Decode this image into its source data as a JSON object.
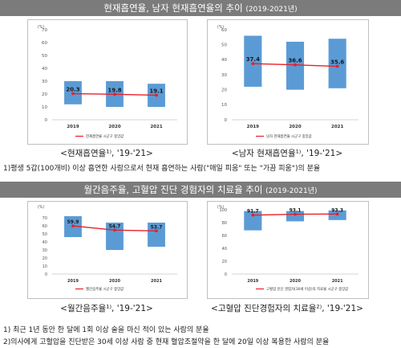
{
  "section1": {
    "title": "현재흡연율, 남자 현재흡연율의 추이",
    "years": "(2019-2021년)"
  },
  "section2": {
    "title": "월간음주율, 고혈압 진단 경험자의 치료율 추이",
    "years": "(2019-2021년)"
  },
  "captions": [
    "<현재흡연율¹⁾, '19-'21>",
    "<남자 현재흡연율¹⁾, '19-'21>",
    "<월간음주율¹⁾, '19-'21>",
    "<고혈압 진단경험자의 치료율²⁾, '19-'21>"
  ],
  "notes": {
    "smoking": "1)평생 5갑(100개비) 이상 흡연한 사람으로서 현재 흡연하는 사람(\"매일 피움\" 또는 \"가끔 피움\")의 분율",
    "drinking1": "1) 최근 1년 동안 한 달에 1회 이상 술을 마신 적이 있는 사람의 분율",
    "drinking2": "2)의사에게 고혈압을 진단받은 30세 이상 사람 중 현재 혈압조절약을 한 달에 20일 이상 복용한 사람의 분율"
  },
  "colors": {
    "bar": "#5b9bd5",
    "line": "#e8202a",
    "banner": "#7b7b7b"
  },
  "chart_data": [
    {
      "type": "line",
      "unit": "(%)",
      "x": [
        "2019",
        "2020",
        "2021"
      ],
      "series": [
        {
          "name": "현재흡연율 시군구 중앙값",
          "values": [
            20.3,
            19.8,
            19.1
          ]
        }
      ],
      "ranges": [
        [
          12,
          30
        ],
        [
          10,
          30
        ],
        [
          10,
          28
        ]
      ],
      "ylim": [
        0,
        70
      ],
      "yticks": [
        0,
        10,
        20,
        30,
        40,
        50,
        60,
        70
      ],
      "labels": [
        "20.3",
        "19.8",
        "19.1"
      ]
    },
    {
      "type": "line",
      "unit": "(%)",
      "x": [
        "2019",
        "2020",
        "2021"
      ],
      "series": [
        {
          "name": "남자 현재흡연율 시군구 중앙값",
          "values": [
            37.4,
            36.6,
            35.6
          ]
        }
      ],
      "ranges": [
        [
          22,
          56
        ],
        [
          20,
          52
        ],
        [
          21,
          54
        ]
      ],
      "ylim": [
        0,
        60
      ],
      "yticks": [
        0,
        10,
        20,
        30,
        40,
        50,
        60
      ],
      "labels": [
        "37.4",
        "36.6",
        "35.6"
      ]
    },
    {
      "type": "line",
      "unit": "(%)",
      "x": [
        "2019",
        "2020",
        "2021"
      ],
      "series": [
        {
          "name": "월간음주율 시군구 중앙값",
          "values": [
            59.9,
            54.7,
            53.7
          ]
        }
      ],
      "ranges": [
        [
          46,
          72
        ],
        [
          30,
          64
        ],
        [
          34,
          64
        ]
      ],
      "ylim": [
        0,
        80
      ],
      "yticks": [
        0,
        10,
        20,
        30,
        40,
        50,
        60,
        70
      ],
      "labels": [
        "59.9",
        "54.7",
        "53.7"
      ]
    },
    {
      "type": "line",
      "unit": "(%)",
      "x": [
        "2019",
        "2020",
        "2021"
      ],
      "series": [
        {
          "name": "고혈압 진단 경험자(30세 이상)의 치료율 시군구 중앙값",
          "values": [
            91.7,
            93.1,
            93.3
          ]
        }
      ],
      "ranges": [
        [
          68,
          98
        ],
        [
          82,
          98
        ],
        [
          84,
          99
        ]
      ],
      "ylim": [
        0,
        100
      ],
      "yticks": [
        0,
        20,
        40,
        60,
        80,
        100
      ],
      "labels": [
        "91.7",
        "93.1",
        "93.3"
      ]
    }
  ]
}
